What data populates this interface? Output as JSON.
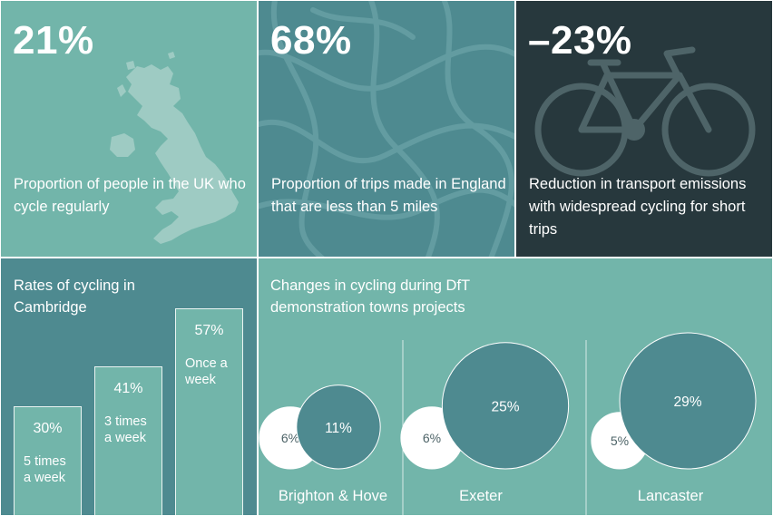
{
  "stats": {
    "uk": {
      "value": "21%",
      "description": "Proportion of people in the UK who cycle regularly",
      "icon": "uk-map-icon"
    },
    "trips": {
      "value": "68%",
      "description": "Proportion of trips made in England that are less than 5 miles",
      "icon": "roads-pattern-icon"
    },
    "emissions": {
      "value": "–23%",
      "description": "Reduction in transport emissions with widespread cycling for short trips",
      "icon": "bicycle-icon"
    }
  },
  "colors": {
    "teal_light": "#72b5aa",
    "teal_mid": "#4e8a90",
    "teal_dark": "#27383d",
    "white": "#ffffff"
  },
  "chart_data": [
    {
      "type": "bar",
      "title": "Rates of cycling in Cambridge",
      "categories": [
        "5 times a week",
        "3 times a week",
        "Once a week"
      ],
      "values": [
        30,
        41,
        57
      ],
      "value_labels": [
        "30%",
        "41%",
        "57%"
      ],
      "category_lines": [
        [
          "5 times",
          "a week"
        ],
        [
          "3 times",
          "a week"
        ],
        [
          "Once a",
          "week"
        ]
      ],
      "ylim": [
        0,
        57
      ]
    },
    {
      "type": "bubble",
      "title": "Changes in cycling during DfT demonstration towns projects",
      "categories": [
        "Brighton & Hove",
        "Exeter",
        "Lancaster"
      ],
      "series": [
        {
          "values": [
            6,
            6,
            5
          ],
          "value_labels": [
            "6%",
            "6%",
            "5%"
          ]
        },
        {
          "values": [
            11,
            25,
            29
          ],
          "value_labels": [
            "11%",
            "25%",
            "29%"
          ]
        }
      ]
    }
  ]
}
